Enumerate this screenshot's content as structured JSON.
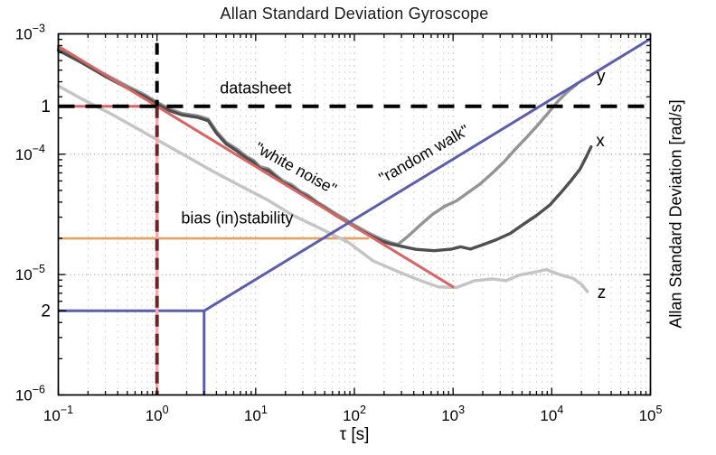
{
  "chart_data": {
    "type": "line",
    "title": "Allan Standard Deviation Gyroscope",
    "xlabel": "τ [s]",
    "ylabel_right": "Allan Standard Deviation [rad/s]",
    "xlim": [
      0.1,
      100000
    ],
    "ylim": [
      1e-06,
      0.001
    ],
    "x_tick_exponents": [
      -1,
      0,
      1,
      2,
      3,
      4,
      5
    ],
    "y_tick_exponents": [
      -3,
      -4,
      -5,
      -6
    ],
    "extra_y_ticks": [
      {
        "label": "1",
        "sigma": 0.00025
      },
      {
        "label": "2",
        "sigma": 5e-06
      }
    ],
    "grid": "log minor dotted",
    "legend_position": "none",
    "series": [
      {
        "name": "x",
        "label": "x",
        "color": "#4f4f4f",
        "points": [
          [
            0.1,
            0.00073
          ],
          [
            0.17,
            0.00058
          ],
          [
            0.29,
            0.00045
          ],
          [
            0.5,
            0.000355
          ],
          [
            0.76,
            0.0003
          ],
          [
            1.0,
            0.000262
          ],
          [
            1.35,
            0.00023
          ],
          [
            1.8,
            0.000212
          ],
          [
            2.6,
            0.000202
          ],
          [
            3.3,
            0.00019
          ],
          [
            4.0,
            0.00015
          ],
          [
            5.0,
            0.000122
          ],
          [
            6.5,
            0.000106
          ],
          [
            8.0,
            9.3e-05
          ],
          [
            9.5,
            8.6e-05
          ],
          [
            11,
            7.6e-05
          ],
          [
            13.5,
            7.3e-05
          ],
          [
            16,
            6.5e-05
          ],
          [
            19,
            5.8e-05
          ],
          [
            23,
            5.4e-05
          ],
          [
            28,
            4.8e-05
          ],
          [
            34,
            4.4e-05
          ],
          [
            42,
            3.9e-05
          ],
          [
            52,
            3.5e-05
          ],
          [
            65,
            3.1e-05
          ],
          [
            80,
            2.8e-05
          ],
          [
            100,
            2.5e-05
          ],
          [
            125,
            2.25e-05
          ],
          [
            155,
            2.05e-05
          ],
          [
            190,
            1.9e-05
          ],
          [
            230,
            1.8e-05
          ],
          [
            300,
            1.72e-05
          ],
          [
            420,
            1.62e-05
          ],
          [
            640,
            1.58e-05
          ],
          [
            970,
            1.63e-05
          ],
          [
            1190,
            1.7e-05
          ],
          [
            1500,
            1.63e-05
          ],
          [
            2000,
            1.77e-05
          ],
          [
            2750,
            1.95e-05
          ],
          [
            3800,
            2.2e-05
          ],
          [
            5100,
            2.6e-05
          ],
          [
            7000,
            3.1e-05
          ],
          [
            9600,
            3.8e-05
          ],
          [
            12400,
            4.8e-05
          ],
          [
            15600,
            6e-05
          ],
          [
            19300,
            7.5e-05
          ],
          [
            22500,
            9.6e-05
          ],
          [
            25000,
            0.000115
          ]
        ]
      },
      {
        "name": "y",
        "label": "y",
        "color": "#949494",
        "points": [
          [
            0.1,
            0.00076
          ],
          [
            0.17,
            0.0006
          ],
          [
            0.29,
            0.000465
          ],
          [
            0.5,
            0.000368
          ],
          [
            0.76,
            0.00031
          ],
          [
            1.0,
            0.00027
          ],
          [
            1.35,
            0.000237
          ],
          [
            1.8,
            0.000218
          ],
          [
            2.6,
            0.000208
          ],
          [
            3.3,
            0.000196
          ],
          [
            4.0,
            0.000155
          ],
          [
            5.0,
            0.000126
          ],
          [
            6.5,
            0.00011
          ],
          [
            8.0,
            9.6e-05
          ],
          [
            9.5,
            8.9e-05
          ],
          [
            11,
            7.9e-05
          ],
          [
            13.5,
            7.55e-05
          ],
          [
            16,
            6.7e-05
          ],
          [
            19,
            6e-05
          ],
          [
            23,
            5.6e-05
          ],
          [
            28,
            4.95e-05
          ],
          [
            34,
            4.55e-05
          ],
          [
            42,
            4e-05
          ],
          [
            52,
            3.6e-05
          ],
          [
            65,
            3.2e-05
          ],
          [
            80,
            2.9e-05
          ],
          [
            100,
            2.58e-05
          ],
          [
            125,
            2.32e-05
          ],
          [
            155,
            2.12e-05
          ],
          [
            190,
            1.96e-05
          ],
          [
            230,
            1.85e-05
          ],
          [
            276,
            1.78e-05
          ],
          [
            354,
            2.1e-05
          ],
          [
            470,
            2.6e-05
          ],
          [
            615,
            3.15e-05
          ],
          [
            824,
            3.7e-05
          ],
          [
            1083,
            4.1e-05
          ],
          [
            1420,
            4.8e-05
          ],
          [
            1900,
            5.7e-05
          ],
          [
            2510,
            7e-05
          ],
          [
            3310,
            8.7e-05
          ],
          [
            4270,
            0.00011
          ],
          [
            5510,
            0.000137
          ],
          [
            7100,
            0.000172
          ],
          [
            9180,
            0.00022
          ],
          [
            11500,
            0.000275
          ],
          [
            14400,
            0.00033
          ],
          [
            17800,
            0.00038
          ]
        ]
      },
      {
        "name": "z",
        "label": "z",
        "color": "#c4c4c4",
        "points": [
          [
            0.1,
            0.00037
          ],
          [
            0.17,
            0.00029
          ],
          [
            0.33,
            0.00022
          ],
          [
            0.61,
            0.000166
          ],
          [
            1.0,
            0.000132
          ],
          [
            1.95,
            9.7e-05
          ],
          [
            3.7,
            7.2e-05
          ],
          [
            6.9,
            5.5e-05
          ],
          [
            13,
            4.2e-05
          ],
          [
            24,
            3.1e-05
          ],
          [
            46,
            2.4e-05
          ],
          [
            87,
            1.85e-05
          ],
          [
            155,
            1.3e-05
          ],
          [
            276,
            1.06e-05
          ],
          [
            470,
            8.9e-06
          ],
          [
            710,
            7.9e-06
          ],
          [
            1080,
            7.8e-06
          ],
          [
            1650,
            8.9e-06
          ],
          [
            2510,
            9.2e-06
          ],
          [
            3440,
            8.9e-06
          ],
          [
            4700,
            9.9e-06
          ],
          [
            6400,
            1.04e-05
          ],
          [
            8800,
            1.1e-05
          ],
          [
            12000,
            1e-05
          ],
          [
            16500,
            9.3e-06
          ],
          [
            20000,
            8.3e-06
          ],
          [
            23000,
            7.2e-06
          ]
        ]
      }
    ],
    "reference_lines": {
      "datasheet": {
        "sigma": 0.00025,
        "color": "#000000",
        "style": "dashed"
      },
      "white_noise": {
        "color": "#d96464",
        "slope": -0.5,
        "diagonal": [
          [
            0.1,
            0.00079
          ],
          [
            1000,
            7.9e-06
          ]
        ],
        "horizontal_sigma": 0.00025,
        "horizontal_tau_range": [
          0.1,
          1
        ]
      },
      "tau_marker": {
        "tau": 1,
        "black_top_sigma": 0.00084,
        "split_sigma": 0.00025,
        "pink": "#f2abb1",
        "dark_red": "#6d2426"
      },
      "random_walk": {
        "color": "#5d5dae",
        "slope": 0.5,
        "level_sigma": 5e-06,
        "level_tau_range": [
          0.1,
          3
        ],
        "vertical_tau": 3,
        "diagonal_end": [
          100000,
          0.00091
        ]
      },
      "bias_instability": {
        "color": "#e2a263",
        "sigma": 2e-05,
        "tau_range": [
          0.1,
          140
        ]
      }
    },
    "annotations": [
      {
        "name": "datasheet-label",
        "text": "datasheet",
        "tau": 10,
        "sigma": 0.00032,
        "rot": 0,
        "size": 18
      },
      {
        "name": "white-noise-label",
        "text": "\"white noise\"",
        "tau": 24,
        "sigma": 7e-05,
        "rot": 29,
        "size": 17.5
      },
      {
        "name": "random-walk-label",
        "text": "\"random walk\"",
        "tau": 540,
        "sigma": 9.2e-05,
        "rot": -30,
        "size": 17.5
      },
      {
        "name": "bias-instability-label",
        "text": "bias (in)stability",
        "tau": 6.5,
        "sigma": 2.66e-05,
        "rot": 0,
        "size": 18
      },
      {
        "name": "series-x-label",
        "text": "x",
        "tau": 31000,
        "sigma": 0.000116,
        "rot": 0,
        "size": 19
      },
      {
        "name": "series-y-label",
        "text": "y",
        "tau": 31600,
        "sigma": 0.0004,
        "rot": 0,
        "size": 19
      },
      {
        "name": "series-z-label",
        "text": "z",
        "tau": 32000,
        "sigma": 6.4e-06,
        "rot": 0,
        "size": 19
      }
    ]
  }
}
